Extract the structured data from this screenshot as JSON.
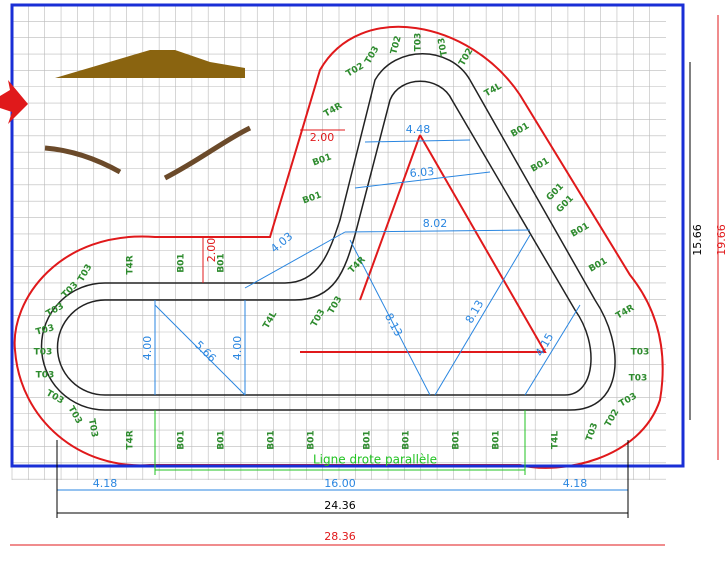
{
  "dimensions": [
    "2.00",
    "2.00",
    "4.48",
    "6.03",
    "8.02",
    "4.03",
    "8.13",
    "8.13",
    "4.00",
    "4.00",
    "5.66",
    "4.15",
    "15.66",
    "19.66",
    "4.18",
    "16.00",
    "4.18",
    "24.36",
    "28.36"
  ],
  "caption": "Ligne drote parallèle",
  "track_labels": [
    "T03",
    "T02",
    "T03",
    "T03",
    "T02",
    "T02",
    "T4R",
    "T4L",
    "B01",
    "B01",
    "G01",
    "G01",
    "B01",
    "B01",
    "T4R",
    "T03",
    "T03",
    "T03",
    "T02",
    "T03",
    "T4L",
    "B01",
    "B01",
    "T4R",
    "T03",
    "T03",
    "T4L",
    "B01",
    "B01",
    "T4R",
    "T03",
    "T03",
    "T03",
    "T03",
    "T03",
    "T03",
    "T03",
    "T03",
    "T03",
    "T4R",
    "B01",
    "B01",
    "B01",
    "B01",
    "B01",
    "B01",
    "B01",
    "B01"
  ]
}
